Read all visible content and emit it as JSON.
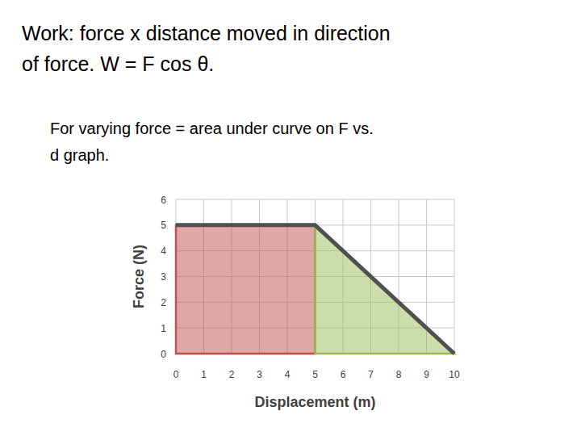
{
  "slide": {
    "title": [
      "Work: force x distance moved in direction",
      "of force. W = F cos θ."
    ],
    "bullet": [
      "For varying force = area under curve on F vs.",
      "d graph."
    ]
  },
  "chart_data": {
    "type": "line",
    "x_label": "Displacement (m)",
    "y_label": "Force (N)",
    "x": [
      0,
      5,
      10
    ],
    "series": [
      {
        "type": "area",
        "color": "#c0504d",
        "values": [
          5,
          5,
          null
        ]
      },
      {
        "type": "area",
        "color": "#9bbb59",
        "values": [
          null,
          5,
          0
        ]
      },
      {
        "type": "line",
        "color": "#505050",
        "values": [
          5,
          5,
          0
        ]
      }
    ],
    "xlim": [
      0,
      10
    ],
    "xticks": [
      0,
      1,
      2,
      3,
      4,
      5,
      6,
      7,
      8,
      9,
      10
    ],
    "ylim": [
      0,
      6
    ],
    "yticks": [
      0,
      1,
      2,
      3,
      4,
      5,
      6
    ],
    "grid": true
  }
}
